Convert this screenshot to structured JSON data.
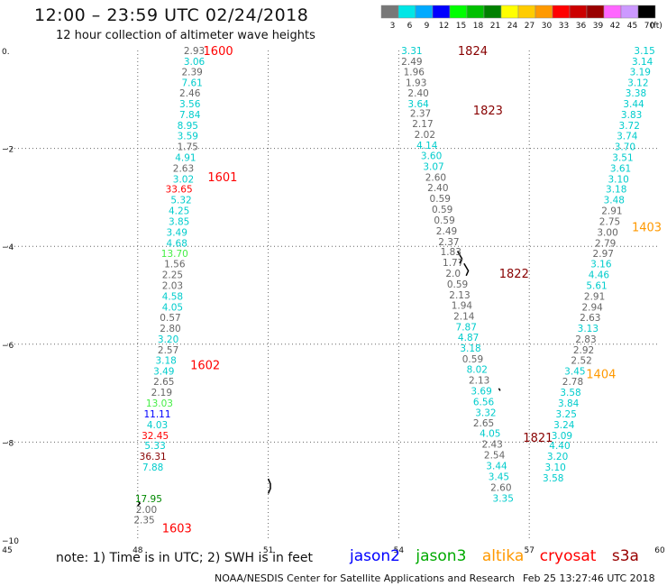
{
  "header": {
    "title": "12:00 – 23:59 UTC 02/24/2018",
    "subtitle": "12 hour collection of altimeter wave heights"
  },
  "colorbar": {
    "labels": [
      "3",
      "6",
      "9",
      "12",
      "15",
      "18",
      "21",
      "24",
      "27",
      "30",
      "33",
      "36",
      "39",
      "42",
      "45",
      "70"
    ],
    "unit": "(ft)",
    "colors": [
      "#777777",
      "#00e6e6",
      "#00aaff",
      "#0000ff",
      "#00ff00",
      "#00c000",
      "#008000",
      "#ffff00",
      "#ffcc00",
      "#ff9900",
      "#ff0000",
      "#cc0000",
      "#990000",
      "#ff66ff",
      "#cc99ff",
      "#000000"
    ]
  },
  "note": "note:  1) Time is in UTC;  2) SWH is in feet",
  "legend": [
    {
      "label": "jason2",
      "color": "#0000ff"
    },
    {
      "label": "jason3",
      "color": "#00aa00"
    },
    {
      "label": "altika",
      "color": "#ff9900"
    },
    {
      "label": "cryosat",
      "color": "#ff0000"
    },
    {
      "label": "s3a",
      "color": "#990000"
    }
  ],
  "footer": {
    "left": "NOAA/NESDIS Center for Satellite Applications and Research",
    "right": "Feb 25 13:27:46 UTC 2018"
  },
  "chart_data": {
    "type": "scatter",
    "xlim": [
      45,
      60
    ],
    "ylim": [
      -10,
      0
    ],
    "xticks": [
      "45",
      "48",
      "51",
      "54",
      "57",
      "60"
    ],
    "yticks": [
      "0.",
      "−2",
      "−4",
      "−6",
      "−8",
      "−10"
    ],
    "track_colors": {
      "grey": "#666666",
      "cyan": "#00cccc",
      "blue": "#0000ff",
      "lgreen": "#44ee44",
      "green": "#008800",
      "red": "#ff0000",
      "dred": "#880000",
      "orange": "#ff9900"
    },
    "tracks": [
      {
        "label": "1600",
        "label_x": 49.85,
        "label_y": 0.0,
        "label_color": "#ff0000",
        "points": [
          {
            "x": 49.3,
            "y": 0.0,
            "v": "2.93",
            "c": "grey"
          },
          {
            "x": 49.3,
            "y": -0.22,
            "v": "3.06",
            "c": "cyan"
          },
          {
            "x": 49.25,
            "y": -0.43,
            "v": "2.39",
            "c": "grey"
          },
          {
            "x": 49.25,
            "y": -0.65,
            "v": "7.61",
            "c": "cyan"
          },
          {
            "x": 49.2,
            "y": -0.87,
            "v": "2.46",
            "c": "grey"
          },
          {
            "x": 49.2,
            "y": -1.09,
            "v": "3.56",
            "c": "cyan"
          },
          {
            "x": 49.2,
            "y": -1.31,
            "v": "7.84",
            "c": "cyan"
          },
          {
            "x": 49.15,
            "y": -1.53,
            "v": "8.95",
            "c": "cyan"
          },
          {
            "x": 49.15,
            "y": -1.74,
            "v": "3.59",
            "c": "cyan"
          },
          {
            "x": 49.15,
            "y": -1.96,
            "v": "1.75",
            "c": "grey"
          },
          {
            "x": 49.1,
            "y": -2.18,
            "v": "4.91",
            "c": "cyan"
          }
        ]
      },
      {
        "label": "1601",
        "label_x": 49.95,
        "label_y": -2.58,
        "label_color": "#ff0000",
        "points": [
          {
            "x": 49.05,
            "y": -2.4,
            "v": "2.63",
            "c": "grey"
          },
          {
            "x": 49.05,
            "y": -2.62,
            "v": "3.02",
            "c": "cyan"
          },
          {
            "x": 48.95,
            "y": -2.83,
            "v": "33.65",
            "c": "red"
          },
          {
            "x": 49.0,
            "y": -3.05,
            "v": "5.32",
            "c": "cyan"
          },
          {
            "x": 48.95,
            "y": -3.27,
            "v": "4.25",
            "c": "cyan"
          },
          {
            "x": 48.95,
            "y": -3.49,
            "v": "3.85",
            "c": "cyan"
          },
          {
            "x": 48.9,
            "y": -3.71,
            "v": "3.49",
            "c": "cyan"
          },
          {
            "x": 48.9,
            "y": -3.93,
            "v": "4.68",
            "c": "cyan"
          },
          {
            "x": 48.85,
            "y": -4.14,
            "v": "13.70",
            "c": "lgreen"
          },
          {
            "x": 48.85,
            "y": -4.36,
            "v": "1.56",
            "c": "grey"
          },
          {
            "x": 48.8,
            "y": -4.58,
            "v": "2.25",
            "c": "grey"
          },
          {
            "x": 48.8,
            "y": -4.8,
            "v": "2.03",
            "c": "grey"
          },
          {
            "x": 48.8,
            "y": -5.02,
            "v": "4.58",
            "c": "cyan"
          },
          {
            "x": 48.8,
            "y": -5.24,
            "v": "4.05",
            "c": "cyan"
          },
          {
            "x": 48.75,
            "y": -5.45,
            "v": "0.57",
            "c": "grey"
          },
          {
            "x": 48.75,
            "y": -5.67,
            "v": "2.80",
            "c": "grey"
          }
        ]
      },
      {
        "label": "1602",
        "label_x": 49.55,
        "label_y": -6.42,
        "label_color": "#ff0000",
        "points": [
          {
            "x": 48.7,
            "y": -5.89,
            "v": "3.20",
            "c": "cyan"
          },
          {
            "x": 48.7,
            "y": -6.11,
            "v": "2.57",
            "c": "grey"
          },
          {
            "x": 48.65,
            "y": -6.33,
            "v": "3.18",
            "c": "cyan"
          },
          {
            "x": 48.6,
            "y": -6.55,
            "v": "3.49",
            "c": "cyan"
          },
          {
            "x": 48.6,
            "y": -6.76,
            "v": "2.65",
            "c": "grey"
          },
          {
            "x": 48.55,
            "y": -6.98,
            "v": "2.19",
            "c": "grey"
          },
          {
            "x": 48.5,
            "y": -7.2,
            "v": "13.03",
            "c": "lgreen"
          },
          {
            "x": 48.45,
            "y": -7.42,
            "v": "11.11",
            "c": "blue"
          },
          {
            "x": 48.45,
            "y": -7.64,
            "v": "4.03",
            "c": "cyan"
          },
          {
            "x": 48.4,
            "y": -7.86,
            "v": "32.45",
            "c": "red"
          },
          {
            "x": 48.4,
            "y": -8.07,
            "v": "5.33",
            "c": "cyan"
          },
          {
            "x": 48.35,
            "y": -8.29,
            "v": "36.31",
            "c": "dred"
          },
          {
            "x": 48.35,
            "y": -8.51,
            "v": "7.88",
            "c": "cyan"
          }
        ]
      },
      {
        "label": "1603",
        "label_x": 48.9,
        "label_y": -9.75,
        "label_color": "#ff0000",
        "points": [
          {
            "x": 48.25,
            "y": -9.15,
            "v": "17.95",
            "c": "green"
          },
          {
            "x": 48.2,
            "y": -9.37,
            "v": "2.00",
            "c": "grey"
          },
          {
            "x": 48.15,
            "y": -9.59,
            "v": "2.35",
            "c": "grey"
          }
        ]
      },
      {
        "label": "1824",
        "label_x": 55.7,
        "label_y": 0.0,
        "label_color": "#880000",
        "points": [
          {
            "x": 54.3,
            "y": 0.0,
            "v": "3.31",
            "c": "cyan"
          },
          {
            "x": 54.3,
            "y": -0.22,
            "v": "2.49",
            "c": "grey"
          },
          {
            "x": 54.35,
            "y": -0.43,
            "v": "1.96",
            "c": "grey"
          },
          {
            "x": 54.4,
            "y": -0.65,
            "v": "1.93",
            "c": "grey"
          },
          {
            "x": 54.45,
            "y": -0.87,
            "v": "2.40",
            "c": "grey"
          },
          {
            "x": 54.45,
            "y": -1.09,
            "v": "3.64",
            "c": "cyan"
          }
        ]
      },
      {
        "label": "1823",
        "label_x": 56.05,
        "label_y": -1.22,
        "label_color": "#880000",
        "points": [
          {
            "x": 54.5,
            "y": -1.28,
            "v": "2.37",
            "c": "grey"
          },
          {
            "x": 54.55,
            "y": -1.49,
            "v": "2.17",
            "c": "grey"
          },
          {
            "x": 54.6,
            "y": -1.71,
            "v": "2.02",
            "c": "grey"
          },
          {
            "x": 54.65,
            "y": -1.93,
            "v": "4.14",
            "c": "cyan"
          },
          {
            "x": 54.75,
            "y": -2.15,
            "v": "3.60",
            "c": "cyan"
          },
          {
            "x": 54.8,
            "y": -2.37,
            "v": "3.07",
            "c": "cyan"
          },
          {
            "x": 54.85,
            "y": -2.59,
            "v": "2.60",
            "c": "grey"
          },
          {
            "x": 54.9,
            "y": -2.8,
            "v": "2.40",
            "c": "grey"
          },
          {
            "x": 54.95,
            "y": -3.02,
            "v": "0.59",
            "c": "grey"
          },
          {
            "x": 55.0,
            "y": -3.24,
            "v": "0.59",
            "c": "grey"
          },
          {
            "x": 55.05,
            "y": -3.46,
            "v": "0.59",
            "c": "grey"
          },
          {
            "x": 55.1,
            "y": -3.68,
            "v": "2.49",
            "c": "grey"
          },
          {
            "x": 55.15,
            "y": -3.9,
            "v": "2.37",
            "c": "grey"
          },
          {
            "x": 55.2,
            "y": -4.11,
            "v": "1.83",
            "c": "grey"
          },
          {
            "x": 55.25,
            "y": -4.33,
            "v": "1.77",
            "c": "grey"
          },
          {
            "x": 55.25,
            "y": -4.55,
            "v": "2.0",
            "c": "grey"
          }
        ]
      },
      {
        "label": "1822",
        "label_x": 56.65,
        "label_y": -4.55,
        "label_color": "#880000",
        "points": [
          {
            "x": 55.35,
            "y": -4.77,
            "v": "0.59",
            "c": "grey"
          },
          {
            "x": 55.4,
            "y": -4.99,
            "v": "2.13",
            "c": "grey"
          },
          {
            "x": 55.45,
            "y": -5.2,
            "v": "1.94",
            "c": "grey"
          },
          {
            "x": 55.5,
            "y": -5.42,
            "v": "2.14",
            "c": "grey"
          },
          {
            "x": 55.55,
            "y": -5.64,
            "v": "7.87",
            "c": "cyan"
          },
          {
            "x": 55.6,
            "y": -5.86,
            "v": "4.87",
            "c": "cyan"
          },
          {
            "x": 55.65,
            "y": -6.08,
            "v": "3.18",
            "c": "cyan"
          },
          {
            "x": 55.7,
            "y": -6.3,
            "v": "0.59",
            "c": "grey"
          },
          {
            "x": 55.8,
            "y": -6.51,
            "v": "8.02",
            "c": "cyan"
          },
          {
            "x": 55.85,
            "y": -6.73,
            "v": "2.13",
            "c": "grey"
          },
          {
            "x": 55.9,
            "y": -6.95,
            "v": "3.69",
            "c": "cyan"
          },
          {
            "x": 55.95,
            "y": -7.17,
            "v": "6.56",
            "c": "cyan"
          },
          {
            "x": 56.0,
            "y": -7.39,
            "v": "3.32",
            "c": "cyan"
          },
          {
            "x": 55.95,
            "y": -7.61,
            "v": "2.65",
            "c": "grey"
          }
        ]
      },
      {
        "label": "1821",
        "label_x": 57.2,
        "label_y": -7.9,
        "label_color": "#880000",
        "points": [
          {
            "x": 56.1,
            "y": -7.82,
            "v": "4.05",
            "c": "cyan"
          },
          {
            "x": 56.15,
            "y": -8.04,
            "v": "2.43",
            "c": "grey"
          },
          {
            "x": 56.2,
            "y": -8.26,
            "v": "2.54",
            "c": "grey"
          },
          {
            "x": 56.25,
            "y": -8.48,
            "v": "3.44",
            "c": "cyan"
          },
          {
            "x": 56.3,
            "y": -8.7,
            "v": "3.45",
            "c": "cyan"
          },
          {
            "x": 56.35,
            "y": -8.92,
            "v": "2.60",
            "c": "grey"
          },
          {
            "x": 56.4,
            "y": -9.14,
            "v": "3.35",
            "c": "cyan"
          }
        ]
      },
      {
        "label": "1403",
        "label_x": 59.7,
        "label_y": -3.6,
        "label_color": "#ff9900",
        "points": [
          {
            "x": 59.65,
            "y": 0.0,
            "v": "3.15",
            "c": "cyan"
          },
          {
            "x": 59.6,
            "y": -0.22,
            "v": "3.14",
            "c": "cyan"
          },
          {
            "x": 59.55,
            "y": -0.43,
            "v": "3.19",
            "c": "cyan"
          },
          {
            "x": 59.5,
            "y": -0.65,
            "v": "3.12",
            "c": "cyan"
          },
          {
            "x": 59.45,
            "y": -0.87,
            "v": "3.38",
            "c": "cyan"
          },
          {
            "x": 59.4,
            "y": -1.09,
            "v": "3.44",
            "c": "cyan"
          },
          {
            "x": 59.35,
            "y": -1.31,
            "v": "3.83",
            "c": "cyan"
          },
          {
            "x": 59.3,
            "y": -1.53,
            "v": "3.72",
            "c": "cyan"
          },
          {
            "x": 59.25,
            "y": -1.74,
            "v": "3.74",
            "c": "cyan"
          },
          {
            "x": 59.2,
            "y": -1.96,
            "v": "3.70",
            "c": "cyan"
          },
          {
            "x": 59.15,
            "y": -2.18,
            "v": "3.51",
            "c": "cyan"
          },
          {
            "x": 59.1,
            "y": -2.4,
            "v": "3.61",
            "c": "cyan"
          },
          {
            "x": 59.05,
            "y": -2.62,
            "v": "3.10",
            "c": "cyan"
          },
          {
            "x": 59.0,
            "y": -2.83,
            "v": "3.18",
            "c": "cyan"
          },
          {
            "x": 58.95,
            "y": -3.05,
            "v": "3.48",
            "c": "cyan"
          },
          {
            "x": 58.9,
            "y": -3.27,
            "v": "2.91",
            "c": "grey"
          },
          {
            "x": 58.85,
            "y": -3.49,
            "v": "2.75",
            "c": "grey"
          },
          {
            "x": 58.8,
            "y": -3.71,
            "v": "3.00",
            "c": "grey"
          },
          {
            "x": 58.75,
            "y": -3.93,
            "v": "2.79",
            "c": "grey"
          },
          {
            "x": 58.7,
            "y": -4.14,
            "v": "2.97",
            "c": "grey"
          },
          {
            "x": 58.65,
            "y": -4.36,
            "v": "3.16",
            "c": "cyan"
          },
          {
            "x": 58.6,
            "y": -4.58,
            "v": "4.46",
            "c": "cyan"
          },
          {
            "x": 58.55,
            "y": -4.8,
            "v": "5.61",
            "c": "cyan"
          },
          {
            "x": 58.5,
            "y": -5.02,
            "v": "2.91",
            "c": "grey"
          },
          {
            "x": 58.45,
            "y": -5.24,
            "v": "2.94",
            "c": "grey"
          },
          {
            "x": 58.4,
            "y": -5.45,
            "v": "2.63",
            "c": "grey"
          },
          {
            "x": 58.35,
            "y": -5.67,
            "v": "3.13",
            "c": "cyan"
          },
          {
            "x": 58.3,
            "y": -5.89,
            "v": "2.83",
            "c": "grey"
          },
          {
            "x": 58.25,
            "y": -6.11,
            "v": "2.92",
            "c": "grey"
          },
          {
            "x": 58.2,
            "y": -6.33,
            "v": "2.52",
            "c": "grey"
          }
        ]
      },
      {
        "label": "1404",
        "label_x": 58.65,
        "label_y": -6.6,
        "label_color": "#ff9900",
        "points": [
          {
            "x": 58.05,
            "y": -6.55,
            "v": "3.45",
            "c": "cyan"
          },
          {
            "x": 58.0,
            "y": -6.76,
            "v": "2.78",
            "c": "grey"
          },
          {
            "x": 57.95,
            "y": -6.98,
            "v": "3.58",
            "c": "cyan"
          },
          {
            "x": 57.9,
            "y": -7.2,
            "v": "3.84",
            "c": "cyan"
          },
          {
            "x": 57.85,
            "y": -7.42,
            "v": "3.25",
            "c": "cyan"
          },
          {
            "x": 57.8,
            "y": -7.64,
            "v": "3.24",
            "c": "cyan"
          },
          {
            "x": 57.75,
            "y": -7.86,
            "v": "3.09",
            "c": "cyan"
          },
          {
            "x": 57.7,
            "y": -8.07,
            "v": "4.40",
            "c": "cyan"
          },
          {
            "x": 57.65,
            "y": -8.29,
            "v": "3.20",
            "c": "cyan"
          },
          {
            "x": 57.6,
            "y": -8.51,
            "v": "3.10",
            "c": "cyan"
          },
          {
            "x": 57.55,
            "y": -8.73,
            "v": "3.58",
            "c": "cyan"
          }
        ]
      }
    ],
    "land": [
      [
        [
          48.0,
          -9.2
        ],
        [
          48.05,
          -9.25
        ],
        [
          48.0,
          -9.3
        ]
      ],
      [
        [
          51.0,
          -8.75
        ],
        [
          51.05,
          -8.85
        ],
        [
          51.05,
          -8.95
        ],
        [
          51.0,
          -9.05
        ]
      ],
      [
        [
          55.35,
          -4.1
        ],
        [
          55.45,
          -4.25
        ],
        [
          55.4,
          -4.35
        ]
      ],
      [
        [
          55.5,
          -4.35
        ],
        [
          55.6,
          -4.5
        ],
        [
          55.55,
          -4.6
        ]
      ],
      [
        [
          56.3,
          -6.9
        ],
        [
          56.33,
          -6.95
        ]
      ]
    ]
  }
}
